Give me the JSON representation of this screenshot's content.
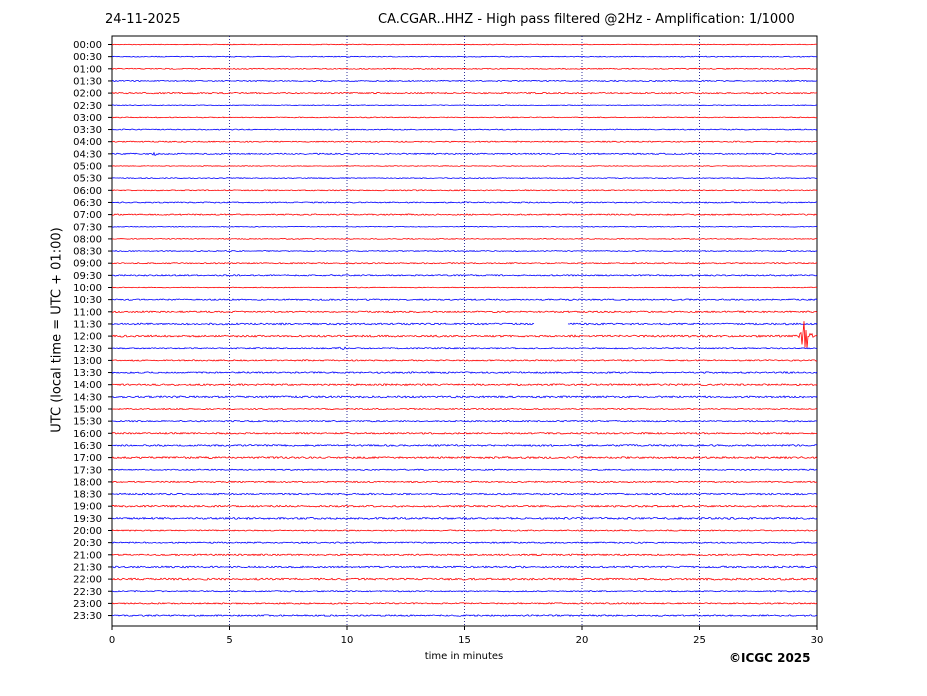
{
  "header": {
    "date": "24-11-2025",
    "title": "CA.CGAR..HHZ - High pass filtered @2Hz - Amplification: 1/1000"
  },
  "footer": {
    "copyright": "©ICGC 2025"
  },
  "chart_data": {
    "type": "line",
    "xlabel": "time in minutes",
    "ylabel": "UTC (local time = UTC + 01:00)",
    "xlim": [
      0,
      30
    ],
    "xticks": [
      0,
      5,
      10,
      15,
      20,
      25,
      30
    ],
    "grid": "vertical dotted at every 5 minutes",
    "colors": {
      "even_rows": "#ff0000",
      "odd_rows": "#0000ff",
      "grid": "#000080"
    },
    "rows": [
      "00:00",
      "00:30",
      "01:00",
      "01:30",
      "02:00",
      "02:30",
      "03:00",
      "03:30",
      "04:00",
      "04:30",
      "05:00",
      "05:30",
      "06:00",
      "06:30",
      "07:00",
      "07:30",
      "08:00",
      "08:30",
      "09:00",
      "09:30",
      "10:00",
      "10:30",
      "11:00",
      "11:30",
      "12:00",
      "12:30",
      "13:00",
      "13:30",
      "14:00",
      "14:30",
      "15:00",
      "15:30",
      "16:00",
      "16:30",
      "17:00",
      "17:30",
      "18:00",
      "18:30",
      "19:00",
      "19:30",
      "20:00",
      "20:30",
      "21:00",
      "21:30",
      "22:00",
      "22:30",
      "23:00",
      "23:30"
    ],
    "gaps": [
      {
        "row": "11:30",
        "x_start": 18.0,
        "x_end": 19.4
      }
    ],
    "events": [
      {
        "row": "04:30",
        "x": 1.8,
        "amplitude": 2
      },
      {
        "row": "12:00",
        "x": 29.5,
        "amplitude": 28
      },
      {
        "row": "12:30",
        "x": 9.8,
        "amplitude": 2
      }
    ]
  }
}
